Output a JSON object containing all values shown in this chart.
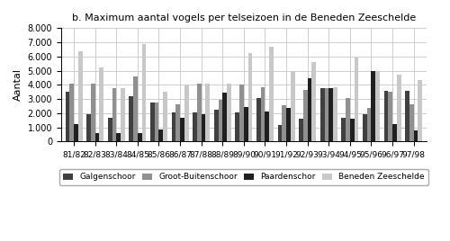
{
  "title": "b. Maximum aantal vogels per telseizoen in de Beneden Zeeschelde",
  "ylabel": "Aantal",
  "seasons": [
    "81/82",
    "82/83",
    "83/84",
    "84/85",
    "85/86",
    "86/87",
    "87/88",
    "88/89",
    "89/90",
    "90/91",
    "91/92",
    "92/93",
    "93/94",
    "94/95",
    "95/96",
    "96/97",
    "97/98"
  ],
  "galgenschoor": [
    3500,
    1950,
    1650,
    3200,
    2750,
    2050,
    2050,
    2250,
    2050,
    3100,
    1200,
    1600,
    3800,
    1650,
    1950,
    3600,
    3600
  ],
  "groot_buitenschoor": [
    4100,
    4100,
    3800,
    4600,
    2750,
    2650,
    4100,
    2950,
    4000,
    3850,
    2550,
    3650,
    3800,
    3100,
    2400,
    3500,
    2600
  ],
  "paardenschor": [
    1250,
    600,
    600,
    600,
    850,
    1700,
    1900,
    3450,
    2450,
    2150,
    2400,
    4500,
    3800,
    1600,
    4950,
    1250,
    800
  ],
  "beneden_zeeschelde": [
    6400,
    5250,
    3750,
    6900,
    3500,
    3950,
    4100,
    4100,
    6250,
    6700,
    4950,
    5600,
    3850,
    5950,
    4950,
    4750,
    4350
  ],
  "colors": {
    "galgenschoor": "#404040",
    "groot_buitenschoor": "#909090",
    "paardenschor": "#202020",
    "beneden_zeeschelde": "#c8c8c8"
  },
  "ylim": [
    0,
    8000
  ],
  "yticks": [
    0,
    1000,
    2000,
    3000,
    4000,
    5000,
    6000,
    7000,
    8000
  ],
  "ytick_labels": [
    "0",
    "1.000",
    "2.000",
    "3.000",
    "4.000",
    "5.000",
    "6.000",
    "7.000",
    "8.000"
  ],
  "legend_labels": [
    "Galgenschoor",
    "Groot-Buitenschoor",
    "Paardenschor",
    "Beneden Zeeschelde"
  ]
}
